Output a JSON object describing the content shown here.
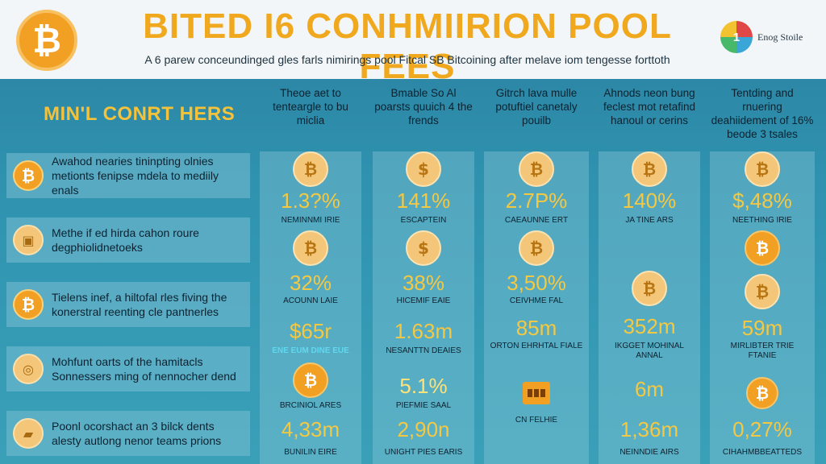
{
  "header": {
    "logo_glyph": "₿",
    "title": "BITED I6 CONHMIIRION POOL FEES",
    "subtitle": "A 6 parew conceundinged gles farls nimirings pool Fitcal SB Bitcoining after melave iom tengesse forttoth",
    "brand_icon_text": "1",
    "brand_text": "Enog Stoile"
  },
  "section_label": "MIN'L CONRT HERS",
  "rows": [
    {
      "icon": "₿",
      "text": "Awahod nearies tininpting olnies metionts fenipse mdela to mediily enals"
    },
    {
      "icon": "▣",
      "text": "Methe if ed hirda cahon roure degphiolidnetoeks"
    },
    {
      "icon": "₿",
      "text": "Tielens inef, a hiltofal rles fiving the konerstral reenting cle pantnerles"
    },
    {
      "icon": "◎",
      "text": "Mohfunt oarts of the hamitacls Sonnessers ming of nennocher dend"
    },
    {
      "icon": "▰",
      "text": "Poonl ocorshact an 3 bilck dents alesty autlong nenor teams prions"
    }
  ],
  "columns": [
    {
      "heading": "Theoe aet to tenteargle to bu miclia",
      "coin1": "₿",
      "value1": "1.3?%",
      "label1": "NEMINNMI IRIE",
      "coin2": "₿",
      "value2": "32%",
      "label2": "ACOUNN LAIE",
      "value3": "$65r",
      "label3": "ENE EUM DINE EUE",
      "coin3": "₿",
      "label4": "BRCINIOL ARES",
      "value5": "4,33m",
      "label5": "BUNILIN EIRE"
    },
    {
      "heading": "Bmable So Al poarsts quuich 4 the frends",
      "coin1": "$",
      "value1": "141%",
      "label1": "ESCAPTEIN",
      "coin2": "$",
      "value2": "38%",
      "label2": "HICEMIF EAIE",
      "value3": "1.63m",
      "label3": "NESANTTN DEAIES",
      "value4": "5.1%",
      "label4": "PIEFMIE SAAL",
      "value5": "2,90n",
      "label5": "UNIGHT PIES EARIS"
    },
    {
      "heading": "Gitrch lava mulle potuftiel canetaly pouilb",
      "coin1": "₿",
      "value1": "2.7P%",
      "label1": "CAEAUNNE ERT",
      "coin2": "₿",
      "value2": "3,50%",
      "label2": "CEIVHME FAL",
      "value3": "85m",
      "label3": "ORTON EHRHTAL FIALE",
      "label4": "CN FELHIE"
    },
    {
      "heading": "Ahnods neon bung feclest mot retafind hanoul or cerins",
      "coin1": "₿",
      "value1": "140%",
      "label1": "JA TINE ARS",
      "coin2": "₿",
      "value2": "352m",
      "label2": "IKGGET MOHINAL",
      "label2b": "ANNAL",
      "value3": "6m",
      "value4": "1,36m",
      "label4": "NEINNDIE AIRS"
    },
    {
      "heading": "Tentding and rnuering deahiidement of 16% beode 3 tsales",
      "coin1": "₿",
      "value1": "$,48%",
      "label1": "NEETHING IRIE",
      "coin2": "₿",
      "coin3": "₿",
      "value3": "59m",
      "label3": "MIRLIBTER TRIE",
      "label3b": "FTANIE",
      "coin4": "₿",
      "value5": "0,27%",
      "label5": "CIHAHMBBEATTEDS"
    }
  ]
}
